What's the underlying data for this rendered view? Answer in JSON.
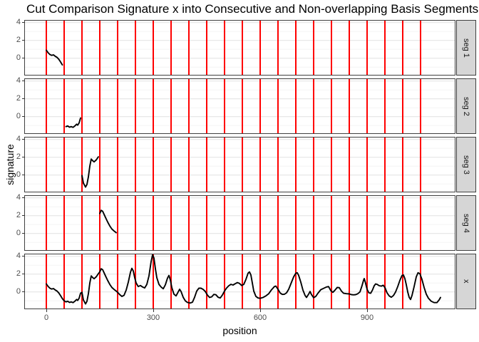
{
  "title": "Cut Comparison Signature x into Consecutive and Non-overlapping Basis Segments",
  "axes": {
    "x_label": "position",
    "y_label": "signature",
    "x_ticks": [
      0,
      300,
      600,
      900
    ],
    "y_ticks": [
      4,
      2,
      0
    ]
  },
  "colors": {
    "cut_line": "#ff0000",
    "signal_line": "#000000",
    "strip_bg": "#d6d6d6",
    "panel_border": "#404040",
    "grid_major": "#e4e4e4",
    "grid_minor": "#f2f2f2",
    "tick_label": "#4d4d4d",
    "title_text": "#000000"
  },
  "facets": [
    {
      "label": "seg 1",
      "xmin": 0,
      "xmax": 46
    },
    {
      "label": "seg 2",
      "xmin": 52,
      "xmax": 97
    },
    {
      "label": "seg 3",
      "xmin": 100,
      "xmax": 148
    },
    {
      "label": "seg 4",
      "xmin": 150,
      "xmax": 197
    },
    {
      "label": "x",
      "xmin": 0,
      "xmax": 1106
    }
  ],
  "chart_data": {
    "type": "line",
    "title": "Cut Comparison Signature x into Consecutive and Non-overlapping Basis Segments",
    "xlabel": "position",
    "ylabel": "signature",
    "xlim": [
      -60,
      1146
    ],
    "ylim": [
      -1.86,
      4.22
    ],
    "x_ticks": [
      0,
      300,
      600,
      900
    ],
    "y_ticks": [
      0,
      2,
      4
    ],
    "grid": "horizontal-only",
    "facet_labels": [
      "seg 1",
      "seg 2",
      "seg 3",
      "seg 4",
      "x"
    ],
    "cut_positions": [
      0,
      50,
      100,
      150,
      200,
      250,
      300,
      350,
      400,
      450,
      500,
      550,
      600,
      650,
      700,
      750,
      800,
      850,
      900,
      950,
      1000,
      1050
    ],
    "points": [
      [
        0,
        0.9
      ],
      [
        5,
        0.62
      ],
      [
        10,
        0.42
      ],
      [
        15,
        0.32
      ],
      [
        20,
        0.38
      ],
      [
        25,
        0.22
      ],
      [
        30,
        0.1
      ],
      [
        35,
        -0.12
      ],
      [
        40,
        -0.42
      ],
      [
        45,
        -0.75
      ],
      [
        50,
        -1.0
      ],
      [
        55,
        -1.12
      ],
      [
        60,
        -1.05
      ],
      [
        65,
        -1.18
      ],
      [
        70,
        -1.12
      ],
      [
        75,
        -1.2
      ],
      [
        80,
        -1.05
      ],
      [
        85,
        -0.85
      ],
      [
        88,
        -0.95
      ],
      [
        92,
        -0.7
      ],
      [
        96,
        -0.15
      ],
      [
        100,
        -0.05
      ],
      [
        104,
        -0.9
      ],
      [
        110,
        -1.35
      ],
      [
        114,
        -1.05
      ],
      [
        118,
        -0.2
      ],
      [
        122,
        1.0
      ],
      [
        126,
        1.8
      ],
      [
        130,
        1.62
      ],
      [
        134,
        1.48
      ],
      [
        140,
        1.7
      ],
      [
        146,
        2.05
      ],
      [
        150,
        2.25
      ],
      [
        154,
        2.6
      ],
      [
        158,
        2.5
      ],
      [
        162,
        2.15
      ],
      [
        166,
        1.8
      ],
      [
        172,
        1.3
      ],
      [
        178,
        0.85
      ],
      [
        184,
        0.5
      ],
      [
        190,
        0.28
      ],
      [
        196,
        0.1
      ],
      [
        200,
        -0.05
      ],
      [
        206,
        -0.3
      ],
      [
        212,
        -0.5
      ],
      [
        218,
        -0.38
      ],
      [
        224,
        0.2
      ],
      [
        230,
        1.1
      ],
      [
        236,
        2.2
      ],
      [
        240,
        2.65
      ],
      [
        244,
        2.35
      ],
      [
        248,
        1.6
      ],
      [
        252,
        1.0
      ],
      [
        258,
        0.6
      ],
      [
        264,
        0.72
      ],
      [
        270,
        0.55
      ],
      [
        276,
        0.45
      ],
      [
        282,
        0.85
      ],
      [
        288,
        1.8
      ],
      [
        294,
        3.4
      ],
      [
        298,
        4.15
      ],
      [
        302,
        3.8
      ],
      [
        306,
        2.6
      ],
      [
        310,
        1.6
      ],
      [
        316,
        0.85
      ],
      [
        322,
        0.55
      ],
      [
        328,
        0.35
      ],
      [
        334,
        0.8
      ],
      [
        340,
        1.55
      ],
      [
        344,
        1.85
      ],
      [
        348,
        1.35
      ],
      [
        352,
        0.5
      ],
      [
        358,
        -0.25
      ],
      [
        364,
        -0.45
      ],
      [
        370,
        0.0
      ],
      [
        374,
        0.3
      ],
      [
        378,
        0.05
      ],
      [
        384,
        -0.6
      ],
      [
        390,
        -1.0
      ],
      [
        396,
        -1.18
      ],
      [
        404,
        -1.25
      ],
      [
        410,
        -1.15
      ],
      [
        416,
        -0.6
      ],
      [
        422,
        0.1
      ],
      [
        428,
        0.42
      ],
      [
        434,
        0.42
      ],
      [
        440,
        0.28
      ],
      [
        446,
        0.05
      ],
      [
        452,
        -0.35
      ],
      [
        458,
        -0.62
      ],
      [
        464,
        -0.55
      ],
      [
        470,
        -0.28
      ],
      [
        476,
        -0.32
      ],
      [
        482,
        -0.6
      ],
      [
        488,
        -0.68
      ],
      [
        494,
        -0.35
      ],
      [
        500,
        0.1
      ],
      [
        506,
        0.45
      ],
      [
        512,
        0.7
      ],
      [
        518,
        0.85
      ],
      [
        524,
        0.78
      ],
      [
        530,
        0.92
      ],
      [
        536,
        1.05
      ],
      [
        542,
        0.95
      ],
      [
        548,
        0.72
      ],
      [
        554,
        0.85
      ],
      [
        560,
        1.4
      ],
      [
        566,
        2.1
      ],
      [
        570,
        2.25
      ],
      [
        574,
        1.9
      ],
      [
        578,
        1.0
      ],
      [
        582,
        0.1
      ],
      [
        588,
        -0.5
      ],
      [
        594,
        -0.68
      ],
      [
        600,
        -0.72
      ],
      [
        608,
        -0.62
      ],
      [
        616,
        -0.45
      ],
      [
        624,
        -0.2
      ],
      [
        632,
        0.25
      ],
      [
        640,
        0.6
      ],
      [
        644,
        0.66
      ],
      [
        650,
        0.3
      ],
      [
        656,
        -0.12
      ],
      [
        662,
        -0.28
      ],
      [
        668,
        -0.26
      ],
      [
        674,
        -0.1
      ],
      [
        680,
        0.3
      ],
      [
        686,
        0.9
      ],
      [
        694,
        1.7
      ],
      [
        700,
        2.1
      ],
      [
        704,
        2.15
      ],
      [
        708,
        1.85
      ],
      [
        714,
        1.1
      ],
      [
        720,
        0.2
      ],
      [
        726,
        -0.4
      ],
      [
        730,
        -0.62
      ],
      [
        736,
        -0.25
      ],
      [
        740,
        0.05
      ],
      [
        744,
        -0.3
      ],
      [
        750,
        -0.65
      ],
      [
        756,
        -0.5
      ],
      [
        762,
        -0.15
      ],
      [
        770,
        0.25
      ],
      [
        778,
        0.4
      ],
      [
        786,
        0.55
      ],
      [
        792,
        0.6
      ],
      [
        798,
        0.15
      ],
      [
        804,
        -0.05
      ],
      [
        810,
        0.2
      ],
      [
        816,
        0.5
      ],
      [
        822,
        0.48
      ],
      [
        828,
        0.1
      ],
      [
        834,
        -0.15
      ],
      [
        842,
        -0.2
      ],
      [
        850,
        -0.22
      ],
      [
        856,
        -0.3
      ],
      [
        862,
        -0.33
      ],
      [
        868,
        -0.3
      ],
      [
        874,
        -0.2
      ],
      [
        880,
        0.0
      ],
      [
        885,
        0.6
      ],
      [
        890,
        1.3
      ],
      [
        892,
        1.5
      ],
      [
        895,
        1.1
      ],
      [
        900,
        0.3
      ],
      [
        905,
        -0.1
      ],
      [
        910,
        -0.15
      ],
      [
        915,
        0.2
      ],
      [
        920,
        0.7
      ],
      [
        924,
        0.9
      ],
      [
        928,
        0.85
      ],
      [
        934,
        0.7
      ],
      [
        940,
        0.65
      ],
      [
        945,
        0.75
      ],
      [
        950,
        0.5
      ],
      [
        956,
        -0.1
      ],
      [
        962,
        -0.45
      ],
      [
        968,
        -0.6
      ],
      [
        974,
        -0.4
      ],
      [
        980,
        0.0
      ],
      [
        986,
        0.6
      ],
      [
        992,
        1.3
      ],
      [
        998,
        1.85
      ],
      [
        1002,
        1.9
      ],
      [
        1006,
        1.5
      ],
      [
        1010,
        0.8
      ],
      [
        1014,
        0.0
      ],
      [
        1018,
        -0.6
      ],
      [
        1022,
        -0.85
      ],
      [
        1026,
        -0.4
      ],
      [
        1032,
        0.6
      ],
      [
        1038,
        1.7
      ],
      [
        1043,
        2.15
      ],
      [
        1048,
        2.05
      ],
      [
        1054,
        1.4
      ],
      [
        1060,
        0.5
      ],
      [
        1066,
        -0.25
      ],
      [
        1072,
        -0.7
      ],
      [
        1080,
        -1.05
      ],
      [
        1088,
        -1.2
      ],
      [
        1096,
        -1.2
      ],
      [
        1102,
        -0.9
      ],
      [
        1106,
        -0.62
      ]
    ]
  }
}
